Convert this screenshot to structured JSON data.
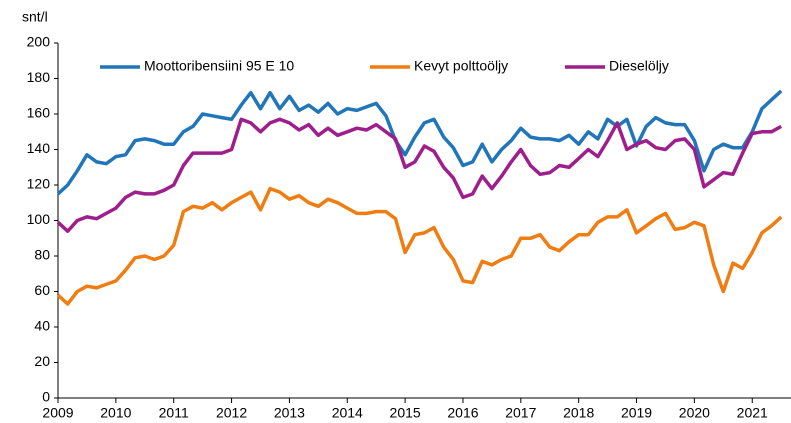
{
  "chart_data": {
    "type": "line",
    "y_axis_label": "snt/l",
    "x": [
      2009,
      2009.167,
      2009.333,
      2009.5,
      2009.667,
      2009.833,
      2010,
      2010.167,
      2010.333,
      2010.5,
      2010.667,
      2010.833,
      2011,
      2011.167,
      2011.333,
      2011.5,
      2011.667,
      2011.833,
      2012,
      2012.167,
      2012.333,
      2012.5,
      2012.667,
      2012.833,
      2013,
      2013.167,
      2013.333,
      2013.5,
      2013.667,
      2013.833,
      2014,
      2014.167,
      2014.333,
      2014.5,
      2014.667,
      2014.833,
      2015,
      2015.167,
      2015.333,
      2015.5,
      2015.667,
      2015.833,
      2016,
      2016.167,
      2016.333,
      2016.5,
      2016.667,
      2016.833,
      2017,
      2017.167,
      2017.333,
      2017.5,
      2017.667,
      2017.833,
      2018,
      2018.167,
      2018.333,
      2018.5,
      2018.667,
      2018.833,
      2019,
      2019.167,
      2019.333,
      2019.5,
      2019.667,
      2019.833,
      2020,
      2020.167,
      2020.333,
      2020.5,
      2020.667,
      2020.833,
      2021,
      2021.167,
      2021.333,
      2021.5
    ],
    "series": [
      {
        "name": "Moottoribensiini 95 E 10",
        "color": "#2175b9",
        "values": [
          115,
          120,
          128,
          137,
          133,
          132,
          136,
          137,
          145,
          146,
          145,
          143,
          143,
          150,
          153,
          160,
          159,
          158,
          157,
          165,
          172,
          163,
          172,
          163,
          170,
          162,
          165,
          161,
          166,
          160,
          163,
          162,
          164,
          166,
          159,
          145,
          137,
          147,
          155,
          157,
          147,
          141,
          131,
          133,
          143,
          133,
          140,
          145,
          152,
          147,
          146,
          146,
          145,
          148,
          143,
          150,
          146,
          157,
          153,
          157,
          142,
          153,
          158,
          155,
          154,
          154,
          145,
          128,
          140,
          143,
          141,
          141,
          150,
          163,
          168,
          173
        ]
      },
      {
        "name": "Kevyt polttoöljy",
        "color": "#f07d12",
        "values": [
          58,
          53,
          60,
          63,
          62,
          64,
          66,
          72,
          79,
          80,
          78,
          80,
          86,
          105,
          108,
          107,
          110,
          106,
          110,
          113,
          116,
          106,
          118,
          116,
          112,
          114,
          110,
          108,
          112,
          110,
          107,
          104,
          104,
          105,
          105,
          101,
          82,
          92,
          93,
          96,
          85,
          78,
          66,
          65,
          77,
          75,
          78,
          80,
          90,
          90,
          92,
          85,
          83,
          88,
          92,
          92,
          99,
          102,
          102,
          106,
          93,
          97,
          101,
          104,
          95,
          96,
          99,
          97,
          75,
          60,
          76,
          73,
          82,
          93,
          97,
          102
        ]
      },
      {
        "name": "Dieselöljy",
        "color": "#9e1e8c",
        "values": [
          99,
          94,
          100,
          102,
          101,
          104,
          107,
          113,
          116,
          115,
          115,
          117,
          120,
          131,
          138,
          138,
          138,
          138,
          140,
          157,
          155,
          150,
          155,
          157,
          155,
          151,
          154,
          148,
          152,
          148,
          150,
          152,
          151,
          154,
          150,
          146,
          130,
          133,
          142,
          139,
          130,
          124,
          113,
          115,
          125,
          118,
          125,
          133,
          140,
          131,
          126,
          127,
          131,
          130,
          135,
          140,
          136,
          145,
          155,
          140,
          143,
          145,
          141,
          140,
          145,
          146,
          140,
          119,
          123,
          127,
          126,
          138,
          149,
          150,
          150,
          153
        ]
      }
    ],
    "xlim": [
      2009,
      2021.67
    ],
    "xticks": [
      2009,
      2010,
      2011,
      2012,
      2013,
      2014,
      2015,
      2016,
      2017,
      2018,
      2019,
      2020,
      2021
    ],
    "ylim": [
      0,
      200
    ],
    "yticks": [
      0,
      20,
      40,
      60,
      80,
      100,
      120,
      140,
      160,
      180,
      200
    ],
    "grid": false,
    "legend": "top"
  }
}
